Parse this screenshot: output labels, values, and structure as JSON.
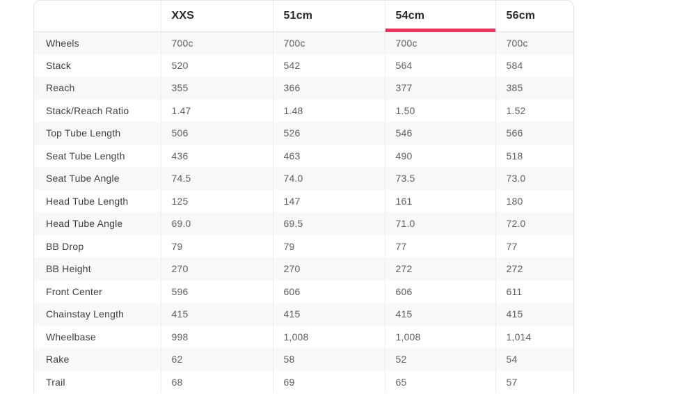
{
  "accent_color": "#e8345a",
  "geometry_table": {
    "selected_column": "54cm",
    "columns": [
      "",
      "XXS",
      "51cm",
      "54cm",
      "56cm"
    ],
    "rows": [
      {
        "label": "Wheels",
        "values": [
          "700c",
          "700c",
          "700c",
          "700c"
        ]
      },
      {
        "label": "Stack",
        "values": [
          "520",
          "542",
          "564",
          "584"
        ]
      },
      {
        "label": "Reach",
        "values": [
          "355",
          "366",
          "377",
          "385"
        ]
      },
      {
        "label": "Stack/Reach Ratio",
        "values": [
          "1.47",
          "1.48",
          "1.50",
          "1.52"
        ]
      },
      {
        "label": "Top Tube Length",
        "values": [
          "506",
          "526",
          "546",
          "566"
        ]
      },
      {
        "label": "Seat Tube Length",
        "values": [
          "436",
          "463",
          "490",
          "518"
        ]
      },
      {
        "label": "Seat Tube Angle",
        "values": [
          "74.5",
          "74.0",
          "73.5",
          "73.0"
        ]
      },
      {
        "label": "Head Tube Length",
        "values": [
          "125",
          "147",
          "161",
          "180"
        ]
      },
      {
        "label": "Head Tube Angle",
        "values": [
          "69.0",
          "69.5",
          "71.0",
          "72.0"
        ]
      },
      {
        "label": "BB Drop",
        "values": [
          "79",
          "79",
          "77",
          "77"
        ]
      },
      {
        "label": "BB Height",
        "values": [
          "270",
          "270",
          "272",
          "272"
        ]
      },
      {
        "label": "Front Center",
        "values": [
          "596",
          "606",
          "606",
          "611"
        ]
      },
      {
        "label": "Chainstay Length",
        "values": [
          "415",
          "415",
          "415",
          "415"
        ]
      },
      {
        "label": "Wheelbase",
        "values": [
          "998",
          "1,008",
          "1,008",
          "1,014"
        ]
      },
      {
        "label": "Rake",
        "values": [
          "62",
          "58",
          "52",
          "54"
        ]
      },
      {
        "label": "Trail",
        "values": [
          "68",
          "69",
          "65",
          "57"
        ]
      }
    ]
  }
}
